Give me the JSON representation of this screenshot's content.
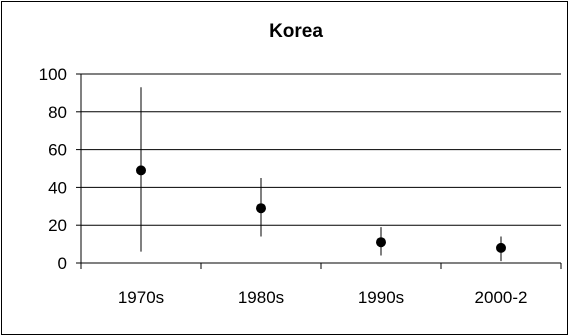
{
  "chart_data": {
    "type": "scatter",
    "title": "Korea",
    "xlabel": "",
    "ylabel": "",
    "categories": [
      "1970s",
      "1980s",
      "1990s",
      "2000-2"
    ],
    "series": [
      {
        "values": [
          49,
          29,
          11,
          8
        ],
        "low": [
          6,
          14,
          4,
          1
        ],
        "high": [
          93,
          45,
          19,
          14
        ]
      }
    ],
    "ylim": [
      0,
      100
    ],
    "yticks": [
      "0",
      "20",
      "40",
      "60",
      "80",
      "100"
    ],
    "grid": true,
    "legend": "none",
    "colors": {
      "marker": "#000000",
      "gridline": "#000000",
      "axis": "#000000"
    }
  }
}
